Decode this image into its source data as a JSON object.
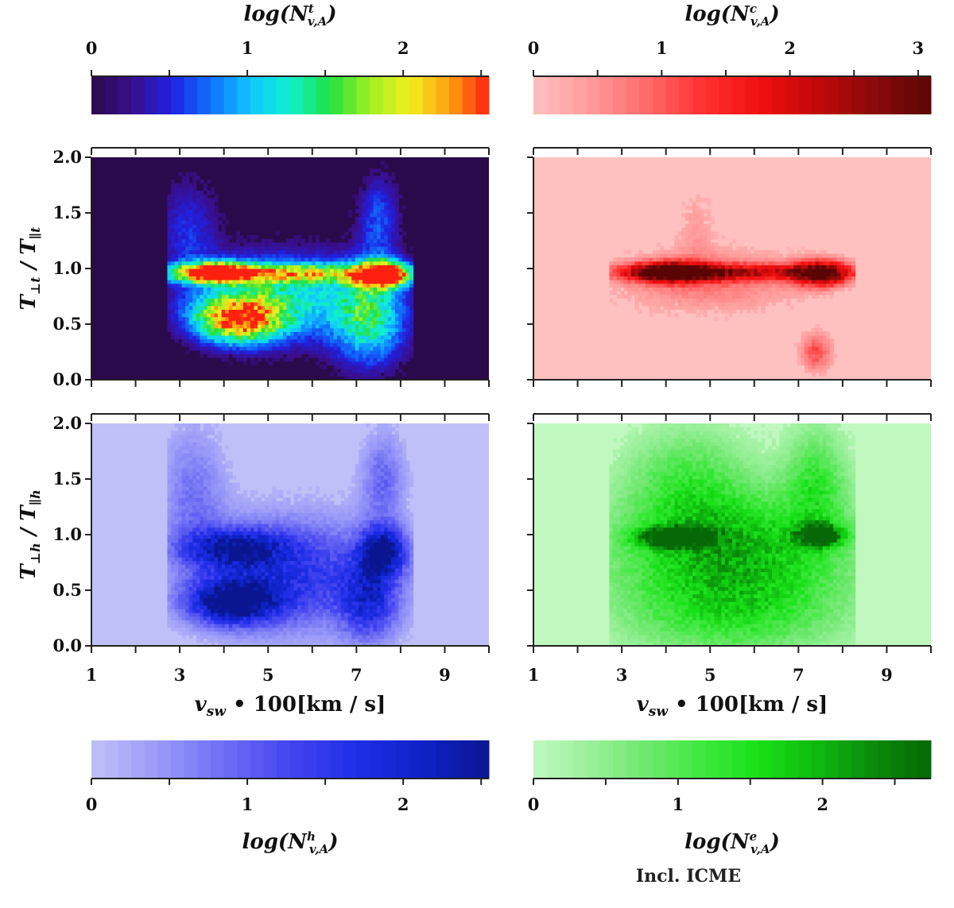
{
  "chart_data": [
    {
      "type": "heatmap",
      "panel": "top-left",
      "title": "",
      "ylabel": {
        "main": "T",
        "sub1": "⊥t",
        "mid": " / T",
        "sub2": "∥t"
      },
      "xlabel": "",
      "xlim": [
        1,
        10
      ],
      "ylim": [
        0,
        2
      ],
      "xticks": [
        "1",
        "3",
        "5",
        "7",
        "9"
      ],
      "yticks": [
        "0.0",
        "0.5",
        "1.0",
        "1.5",
        "2.0"
      ],
      "background": "#2a0a4a",
      "palette": [
        "#2a0a4a",
        "#3a0e8a",
        "#2020e0",
        "#1070ff",
        "#10c8ff",
        "#10f0d0",
        "#20e040",
        "#a0f020",
        "#f0f020",
        "#ffa010",
        "#ff2010"
      ],
      "colorbar": {
        "label_main": "log(N",
        "label_sup": "t",
        "label_sub": "v,A",
        "label_close": ")",
        "ticks": [
          "0",
          "1",
          "2"
        ],
        "max": 2.55,
        "position": "top"
      },
      "blobs": [
        {
          "x": 3.8,
          "y": 0.97,
          "sx": 0.55,
          "sy": 0.06,
          "w": 1.0
        },
        {
          "x": 7.6,
          "y": 0.95,
          "sx": 0.4,
          "sy": 0.08,
          "w": 1.0
        },
        {
          "x": 4.3,
          "y": 0.55,
          "sx": 0.7,
          "sy": 0.15,
          "w": 0.85
        },
        {
          "x": 5.3,
          "y": 0.75,
          "sx": 1.3,
          "sy": 0.28,
          "w": 0.45
        },
        {
          "x": 7.3,
          "y": 0.55,
          "sx": 0.6,
          "sy": 0.3,
          "w": 0.5
        },
        {
          "x": 5.5,
          "y": 0.96,
          "sx": 2.0,
          "sy": 0.06,
          "w": 0.55
        },
        {
          "x": 3.2,
          "y": 1.35,
          "sx": 0.5,
          "sy": 0.35,
          "w": 0.2
        },
        {
          "x": 7.5,
          "y": 1.45,
          "sx": 0.35,
          "sy": 0.3,
          "w": 0.25
        }
      ]
    },
    {
      "type": "heatmap",
      "panel": "top-right",
      "title": "",
      "xlim": [
        1,
        10
      ],
      "ylim": [
        0,
        2
      ],
      "xticks": [
        "1",
        "3",
        "5",
        "7",
        "9"
      ],
      "background": "#ffc0c0",
      "palette": [
        "#ffc0c0",
        "#ff9a9a",
        "#ff6a6a",
        "#ff3030",
        "#f01010",
        "#c00808",
        "#8a0a0a",
        "#5a0505"
      ],
      "colorbar": {
        "label_main": "log(N",
        "label_sup": "c",
        "label_sub": "v,A",
        "label_close": ")",
        "ticks": [
          "0",
          "1",
          "2",
          "3"
        ],
        "max": 3.1,
        "position": "top"
      },
      "blobs": [
        {
          "x": 4.1,
          "y": 0.97,
          "sx": 0.6,
          "sy": 0.06,
          "w": 1.0
        },
        {
          "x": 7.5,
          "y": 0.96,
          "sx": 0.45,
          "sy": 0.08,
          "w": 0.9
        },
        {
          "x": 5.5,
          "y": 0.97,
          "sx": 1.8,
          "sy": 0.05,
          "w": 0.6
        },
        {
          "x": 5.0,
          "y": 0.9,
          "sx": 1.5,
          "sy": 0.2,
          "w": 0.25
        },
        {
          "x": 7.4,
          "y": 0.25,
          "sx": 0.25,
          "sy": 0.12,
          "w": 0.35
        },
        {
          "x": 4.7,
          "y": 1.4,
          "sx": 0.3,
          "sy": 0.25,
          "w": 0.12
        }
      ]
    },
    {
      "type": "heatmap",
      "panel": "bottom-left",
      "title": "",
      "ylabel": {
        "main": "T",
        "sub1": "⊥h",
        "mid": " / T",
        "sub2": "∥h"
      },
      "xlabel": {
        "main": "v",
        "sub": "sw",
        "rest": " • 100[km / s]"
      },
      "xlim": [
        1,
        10
      ],
      "ylim": [
        0,
        2
      ],
      "xticks": [
        "1",
        "3",
        "5",
        "7",
        "9"
      ],
      "yticks": [
        "0.0",
        "0.5",
        "1.0",
        "1.5",
        "2.0"
      ],
      "background": "#c0c0f8",
      "palette": [
        "#c0c0f8",
        "#9a9af8",
        "#6e6ef4",
        "#4444f0",
        "#1f2ee8",
        "#0e22c8",
        "#0a1690"
      ],
      "colorbar": {
        "label_main": "log(N",
        "label_sup": "h",
        "label_sub": "v,A",
        "label_close": ")",
        "ticks": [
          "0",
          "1",
          "2"
        ],
        "max": 2.55,
        "position": "bottom"
      },
      "blobs": [
        {
          "x": 4.2,
          "y": 0.4,
          "sx": 0.7,
          "sy": 0.14,
          "w": 1.0
        },
        {
          "x": 7.6,
          "y": 0.85,
          "sx": 0.35,
          "sy": 0.15,
          "w": 0.95
        },
        {
          "x": 4.2,
          "y": 0.88,
          "sx": 0.8,
          "sy": 0.12,
          "w": 0.75
        },
        {
          "x": 5.5,
          "y": 0.65,
          "sx": 1.5,
          "sy": 0.35,
          "w": 0.6
        },
        {
          "x": 7.3,
          "y": 0.4,
          "sx": 0.45,
          "sy": 0.25,
          "w": 0.6
        },
        {
          "x": 3.3,
          "y": 1.4,
          "sx": 0.5,
          "sy": 0.4,
          "w": 0.3
        },
        {
          "x": 7.6,
          "y": 1.5,
          "sx": 0.35,
          "sy": 0.3,
          "w": 0.35
        }
      ]
    },
    {
      "type": "heatmap",
      "panel": "bottom-right",
      "title": "",
      "xlabel": {
        "main": "v",
        "sub": "sw",
        "rest": " • 100[km / s]"
      },
      "xlim": [
        1,
        10
      ],
      "ylim": [
        0,
        2
      ],
      "xticks": [
        "1",
        "3",
        "5",
        "7",
        "9"
      ],
      "background": "#c0f8c0",
      "palette": [
        "#c0f8c0",
        "#9af09a",
        "#6ee86e",
        "#3ee83e",
        "#18e018",
        "#0fb80f",
        "#0a8a0a",
        "#066806"
      ],
      "colorbar": {
        "label_main": "log(N",
        "label_sup": "e",
        "label_sub": "v,A",
        "label_close": ")",
        "ticks": [
          "0",
          "1",
          "2"
        ],
        "max": 2.75,
        "position": "bottom"
      },
      "blobs": [
        {
          "x": 4.2,
          "y": 0.98,
          "sx": 0.55,
          "sy": 0.06,
          "w": 1.0
        },
        {
          "x": 7.5,
          "y": 1.0,
          "sx": 0.35,
          "sy": 0.07,
          "w": 0.95
        },
        {
          "x": 5.5,
          "y": 0.9,
          "sx": 1.9,
          "sy": 0.35,
          "w": 0.65
        },
        {
          "x": 5.5,
          "y": 0.3,
          "sx": 1.8,
          "sy": 0.3,
          "w": 0.45
        },
        {
          "x": 4.5,
          "y": 1.5,
          "sx": 1.0,
          "sy": 0.35,
          "w": 0.35
        },
        {
          "x": 7.4,
          "y": 1.5,
          "sx": 0.5,
          "sy": 0.35,
          "w": 0.4
        }
      ]
    }
  ],
  "footnote": "Incl. ICME"
}
